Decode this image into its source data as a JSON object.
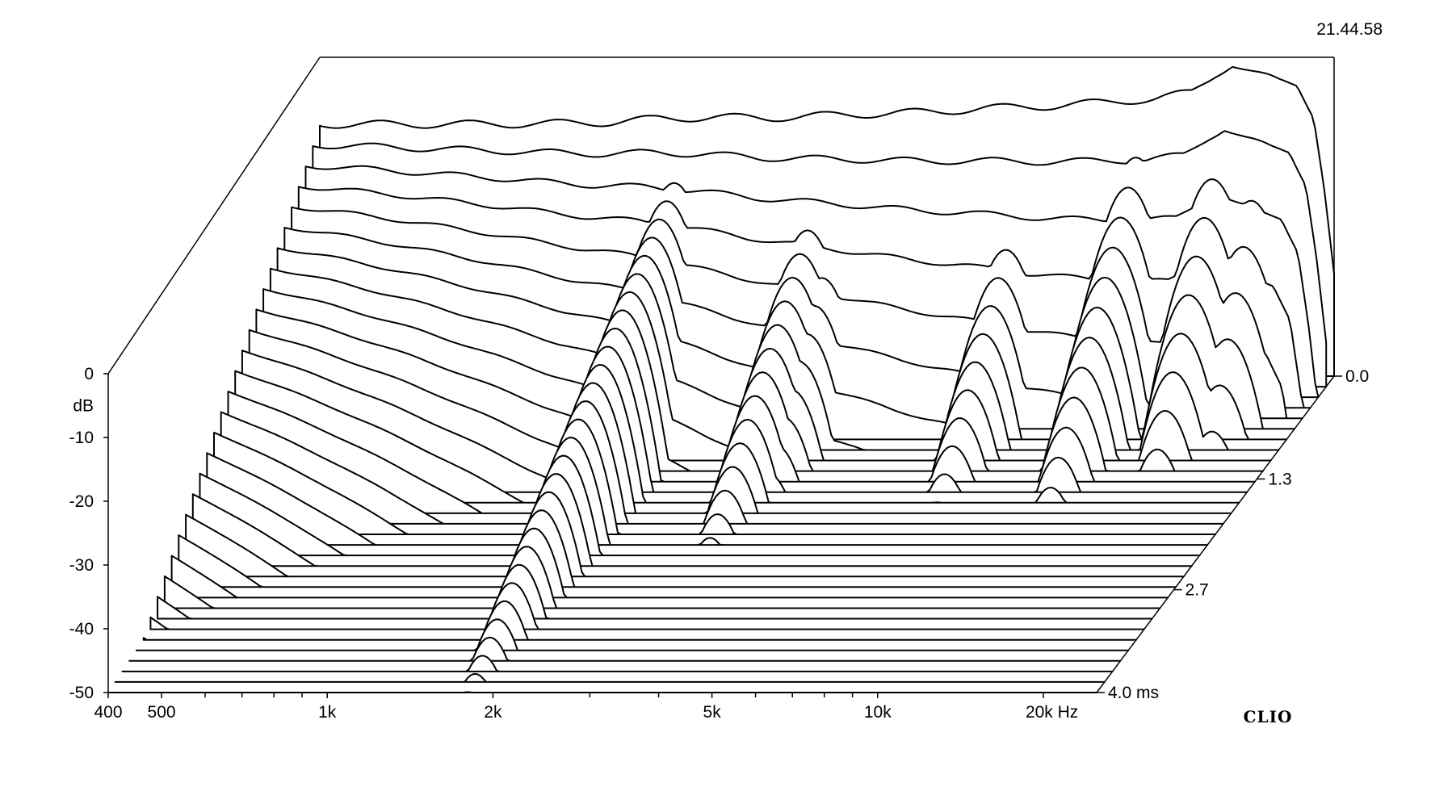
{
  "timestamp": "21.44.58",
  "brand": "CLIO",
  "chart_data": {
    "type": "waterfall",
    "title": "",
    "x_axis": {
      "unit": "Hz",
      "scale": "log",
      "range": [
        400,
        25000
      ],
      "tick_labels": [
        {
          "value": 400,
          "label": "400"
        },
        {
          "value": 500,
          "label": "500"
        },
        {
          "value": 1000,
          "label": "1k"
        },
        {
          "value": 2000,
          "label": "2k"
        },
        {
          "value": 5000,
          "label": "5k"
        },
        {
          "value": 10000,
          "label": "10k"
        },
        {
          "value": 20000,
          "label": "20k Hz"
        }
      ],
      "minor_ticks": [
        600,
        700,
        800,
        900,
        3000,
        4000,
        6000,
        7000,
        8000,
        9000
      ]
    },
    "y_axis": {
      "label": "dB",
      "range": [
        -50,
        0
      ],
      "tick_labels": [
        {
          "value": 0,
          "label": "0"
        },
        {
          "value": -10,
          "label": "-10"
        },
        {
          "value": -20,
          "label": "-20"
        },
        {
          "value": -30,
          "label": "-30"
        },
        {
          "value": -40,
          "label": "-40"
        },
        {
          "value": -50,
          "label": "-50"
        }
      ]
    },
    "z_axis": {
      "unit": "ms",
      "range": [
        0,
        4.0
      ],
      "tick_labels": [
        {
          "value": 0.0,
          "label": "0.0"
        },
        {
          "value": 1.3,
          "label": "1.3"
        },
        {
          "value": 2.7,
          "label": "2.7"
        },
        {
          "value": 4.0,
          "label": "4.0  ms"
        }
      ]
    },
    "slice_count": 31,
    "slice_step_ms": 0.133,
    "floor_db": -50,
    "initial_response_db": [
      {
        "hz": 400,
        "db": -10.5
      },
      {
        "hz": 700,
        "db": -10.5
      },
      {
        "hz": 1000,
        "db": -10.4
      },
      {
        "hz": 1300,
        "db": -10.2
      },
      {
        "hz": 1600,
        "db": -9.6
      },
      {
        "hz": 2000,
        "db": -9.4
      },
      {
        "hz": 2500,
        "db": -9.5
      },
      {
        "hz": 3000,
        "db": -9.2
      },
      {
        "hz": 4000,
        "db": -8.8
      },
      {
        "hz": 5000,
        "db": -8.5
      },
      {
        "hz": 6000,
        "db": -8.0
      },
      {
        "hz": 8000,
        "db": -7.6
      },
      {
        "hz": 10000,
        "db": -7.0
      },
      {
        "hz": 12000,
        "db": -6.5
      },
      {
        "hz": 14000,
        "db": -5.5
      },
      {
        "hz": 15500,
        "db": -2.5
      },
      {
        "hz": 16500,
        "db": -1.0
      },
      {
        "hz": 18000,
        "db": -2.5
      },
      {
        "hz": 20000,
        "db": -3.8
      },
      {
        "hz": 21500,
        "db": -4.2
      },
      {
        "hz": 23000,
        "db": -9.0
      },
      {
        "hz": 24000,
        "db": -20.0
      },
      {
        "hz": 25000,
        "db": -34.0
      }
    ],
    "resonances": [
      {
        "hz": 1800,
        "db": -14,
        "decay_ms": 4.0
      },
      {
        "hz": 3200,
        "db": -16,
        "decay_ms": 2.2
      },
      {
        "hz": 3500,
        "db": -17,
        "decay_ms": 1.6
      },
      {
        "hz": 7200,
        "db": -17,
        "decay_ms": 1.6
      },
      {
        "hz": 11500,
        "db": -11,
        "decay_ms": 1.7
      },
      {
        "hz": 16200,
        "db": -7,
        "decay_ms": 1.3
      },
      {
        "hz": 19000,
        "db": -8,
        "decay_ms": 1.0
      }
    ],
    "grid": false,
    "legend": "none"
  }
}
